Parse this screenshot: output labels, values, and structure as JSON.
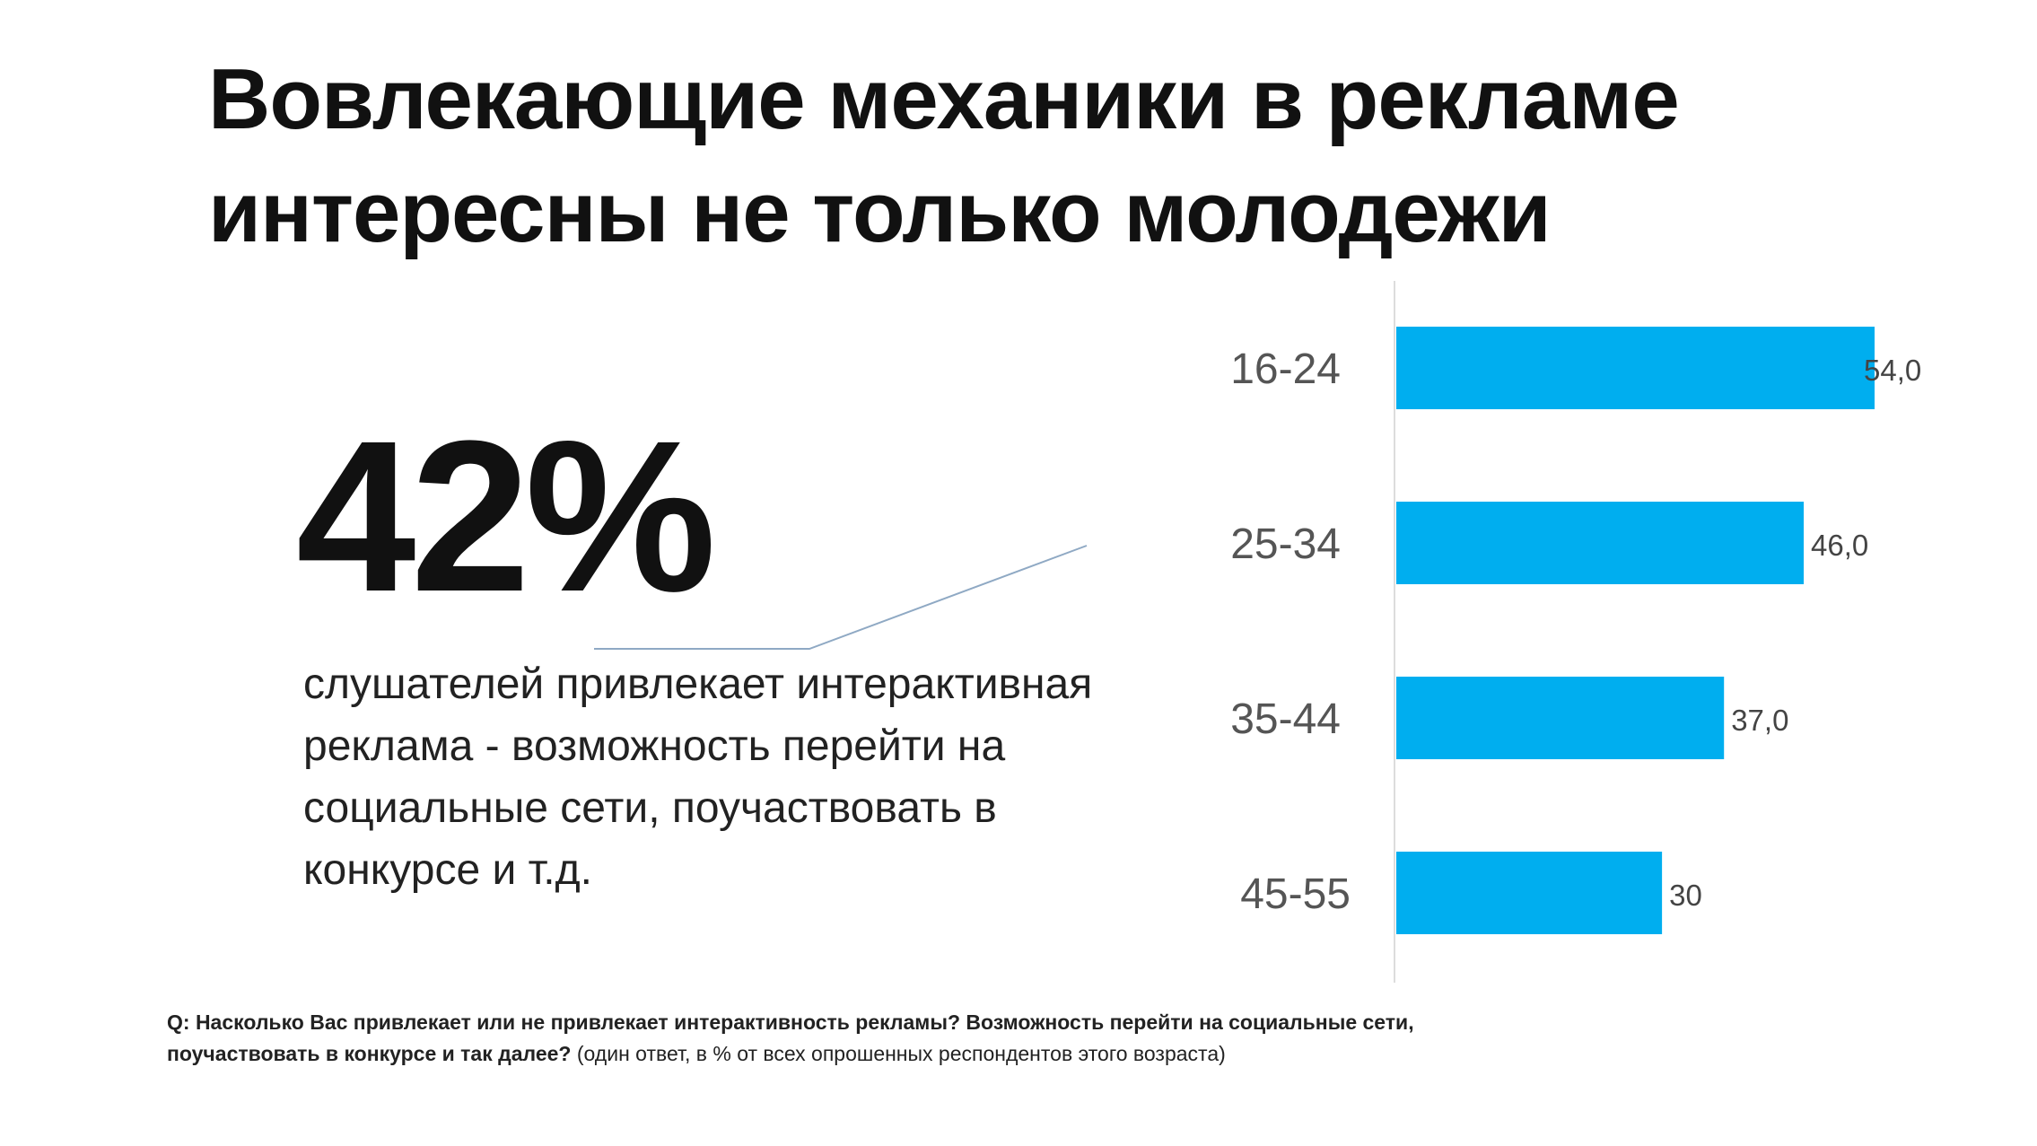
{
  "title_lines": [
    "Вовлекающие механики в рекламе",
    "интересны не только молодежи"
  ],
  "highlight": {
    "value": "42%",
    "description": "слушателей привлекает интерактивная реклама - возможность перейти на социальные сети, поучаствовать в конкурсе и т.д."
  },
  "footnote": {
    "question": "Q: Насколько Вас привлекает или не привлекает интерактивность рекламы? Возможность перейти на социальные сети, поучаствовать в конкурсе и так далее?",
    "note": " (один ответ, в % от всех опрошенных респондентов этого возраста)"
  },
  "colors": {
    "bar": "#00aeef",
    "leader_line": "#8fa9c4"
  },
  "chart_data": {
    "type": "bar",
    "orientation": "horizontal",
    "categories": [
      "16-24",
      "25-34",
      "35-44",
      "45-55"
    ],
    "values": [
      54.0,
      46.0,
      37.0,
      30
    ],
    "data_labels": [
      "54,0",
      "46,0",
      "37,0",
      "30"
    ],
    "xlim": [
      0,
      54
    ],
    "grid": false,
    "title": "",
    "xlabel": "",
    "ylabel": ""
  }
}
